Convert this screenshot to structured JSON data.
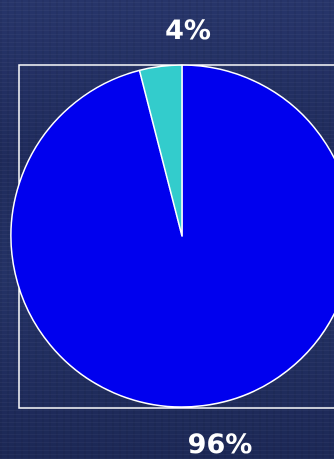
{
  "chart_data": {
    "type": "pie",
    "slices": [
      {
        "label": "96%",
        "value": 96,
        "color": "#0000ee"
      },
      {
        "label": "4%",
        "value": 4,
        "color": "#33cccc"
      }
    ],
    "start_angle_deg": 0,
    "direction": "clockwise",
    "slice_border_color": "#ffffff",
    "frame_color": "#ffffff",
    "background_color": "#24306a"
  }
}
